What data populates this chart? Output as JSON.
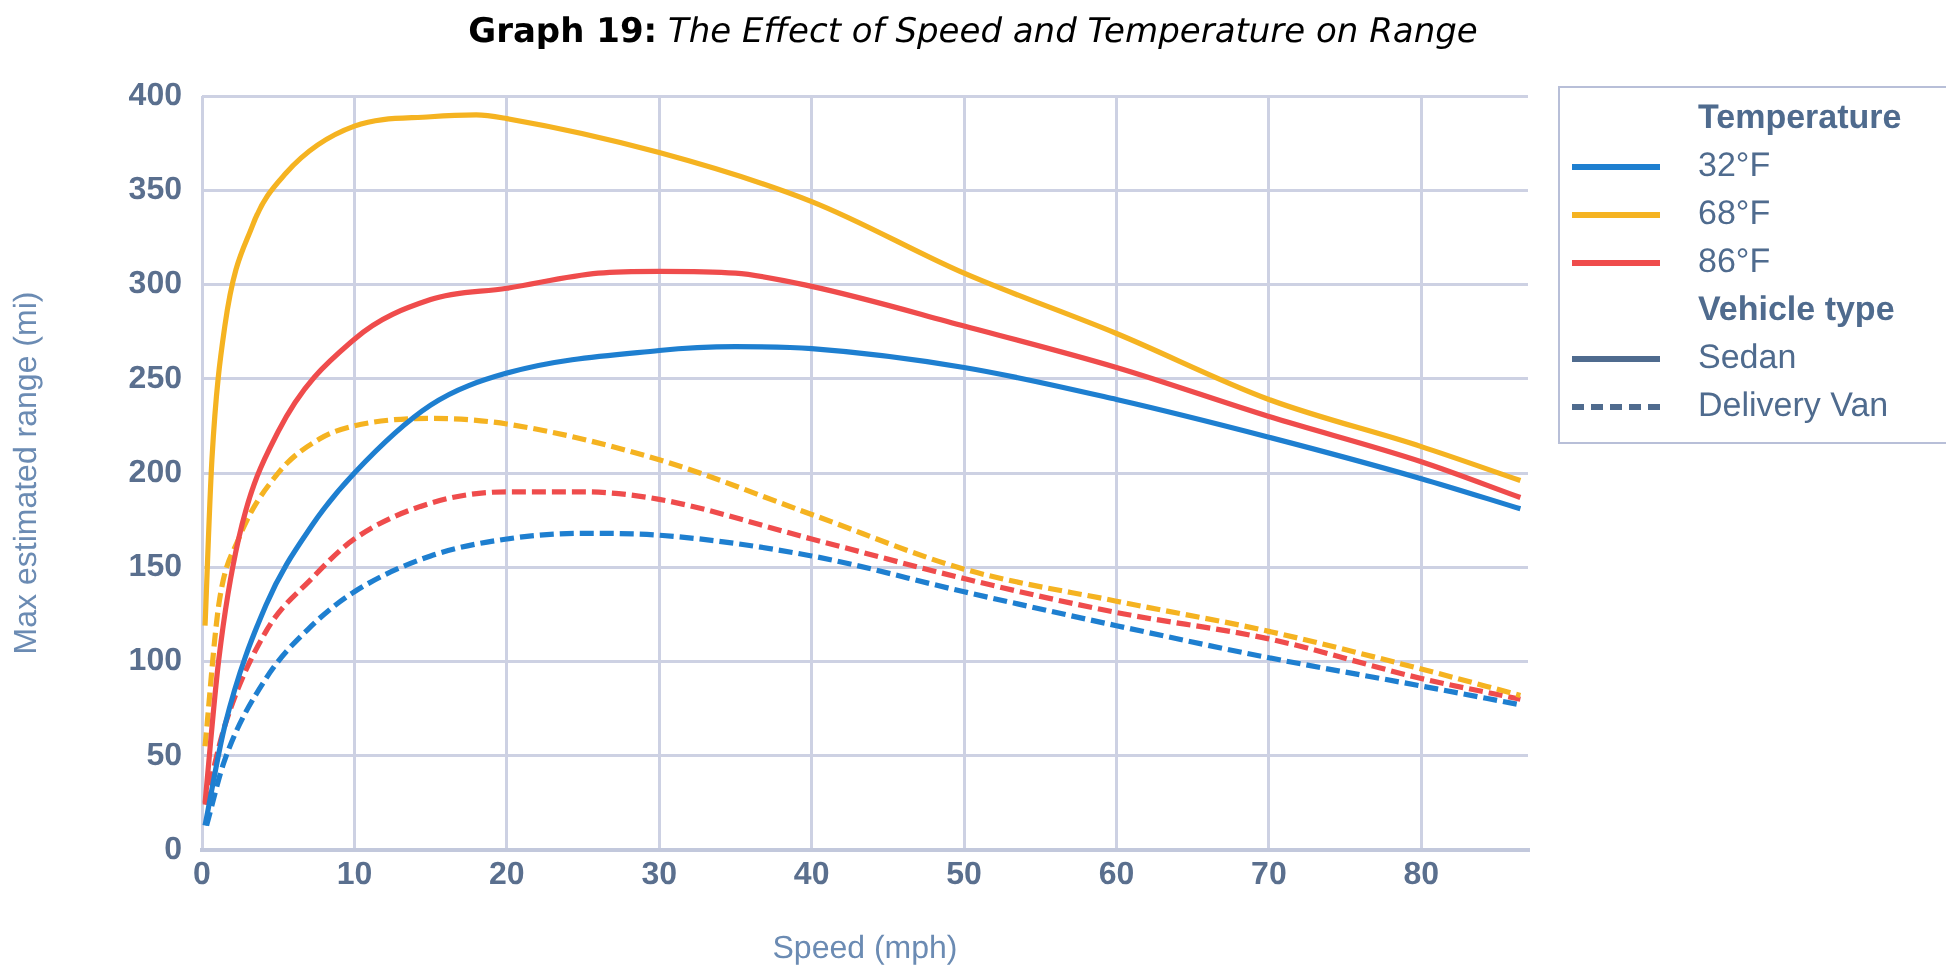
{
  "chart_data": {
    "type": "line",
    "title": "Graph 19: The Effect of Speed and Temperature on Range",
    "xlabel": "Speed (mph)",
    "ylabel": "Max estimated range (mi)",
    "legend_title": "Temperature",
    "annotations": [
      "Vehicle type"
    ],
    "xlim": [
      0,
      87
    ],
    "xticks": [
      0,
      10,
      20,
      30,
      40,
      50,
      60,
      70,
      80
    ],
    "ylim": [
      0,
      400
    ],
    "yticks": [
      0,
      50,
      100,
      150,
      200,
      250,
      300,
      350,
      400
    ],
    "grid": true,
    "legend": "right",
    "marker": "none",
    "series": [
      {
        "name": "32°F",
        "color": "#1e7fd0",
        "line_style": "solid",
        "x": [
          0.2,
          1.5,
          4.2,
          7.2,
          10,
          15,
          20,
          30,
          35,
          40,
          50,
          60,
          70,
          80,
          86.5
        ],
        "values": [
          13,
          66,
          130,
          172,
          200,
          236,
          253,
          265,
          267,
          266,
          256,
          239,
          219,
          197,
          181
        ]
      },
      {
        "name": "68°F",
        "color": "#f5b321",
        "line_style": "solid",
        "x": [
          0.2,
          0.65,
          1.5,
          3.3,
          5.5,
          10,
          15,
          18,
          20,
          30,
          40,
          50,
          60,
          70,
          80,
          86.5
        ],
        "values": [
          119,
          207,
          278,
          331,
          359,
          384,
          389,
          390,
          388,
          370,
          344,
          306,
          274,
          239,
          214,
          196
        ]
      },
      {
        "name": "86°F",
        "color": "#ef4c4c",
        "line_style": "solid",
        "x": [
          0.2,
          1.1,
          2.4,
          5,
          10,
          15,
          20,
          26,
          30,
          35,
          40,
          50,
          60,
          70,
          80,
          86.5
        ],
        "values": [
          25,
          101,
          165,
          222,
          271,
          292,
          298,
          306,
          307,
          306,
          299,
          278,
          256,
          230,
          206,
          187
        ]
      },
      {
        "color": "#1e7fd0",
        "line_style": "dashed",
        "x": [
          0.3,
          1.5,
          4.2,
          7.2,
          10,
          15,
          20,
          25,
          30,
          40,
          50,
          60,
          70,
          80,
          86.5
        ],
        "values": [
          13,
          48,
          91,
          119,
          137,
          156,
          165,
          168,
          167,
          156,
          137,
          119,
          102,
          87,
          77
        ]
      },
      {
        "color": "#f5b321",
        "line_style": "dashed",
        "x": [
          0.2,
          1.1,
          2.4,
          5,
          7.7,
          10,
          15,
          20,
          30,
          40,
          50,
          60,
          70,
          80,
          86.5
        ],
        "values": [
          55,
          130,
          165,
          200,
          218,
          225,
          229,
          226,
          207,
          178,
          149,
          132,
          116,
          96,
          82
        ]
      },
      {
        "color": "#ef4c4c",
        "line_style": "dashed",
        "x": [
          0.2,
          1.5,
          4.2,
          7.2,
          10,
          15,
          20,
          25,
          30,
          40,
          50,
          60,
          70,
          80,
          86.5
        ],
        "values": [
          24,
          66,
          116,
          144,
          165,
          184,
          190,
          190,
          186,
          165,
          144,
          126,
          112,
          91,
          80
        ]
      },
      {
        "name": "Sedan",
        "color": "#4f6b8e",
        "line_style": "solid"
      },
      {
        "name": "Delivery Van",
        "color": "#4f6b8e",
        "line_style": "dashed"
      }
    ]
  }
}
